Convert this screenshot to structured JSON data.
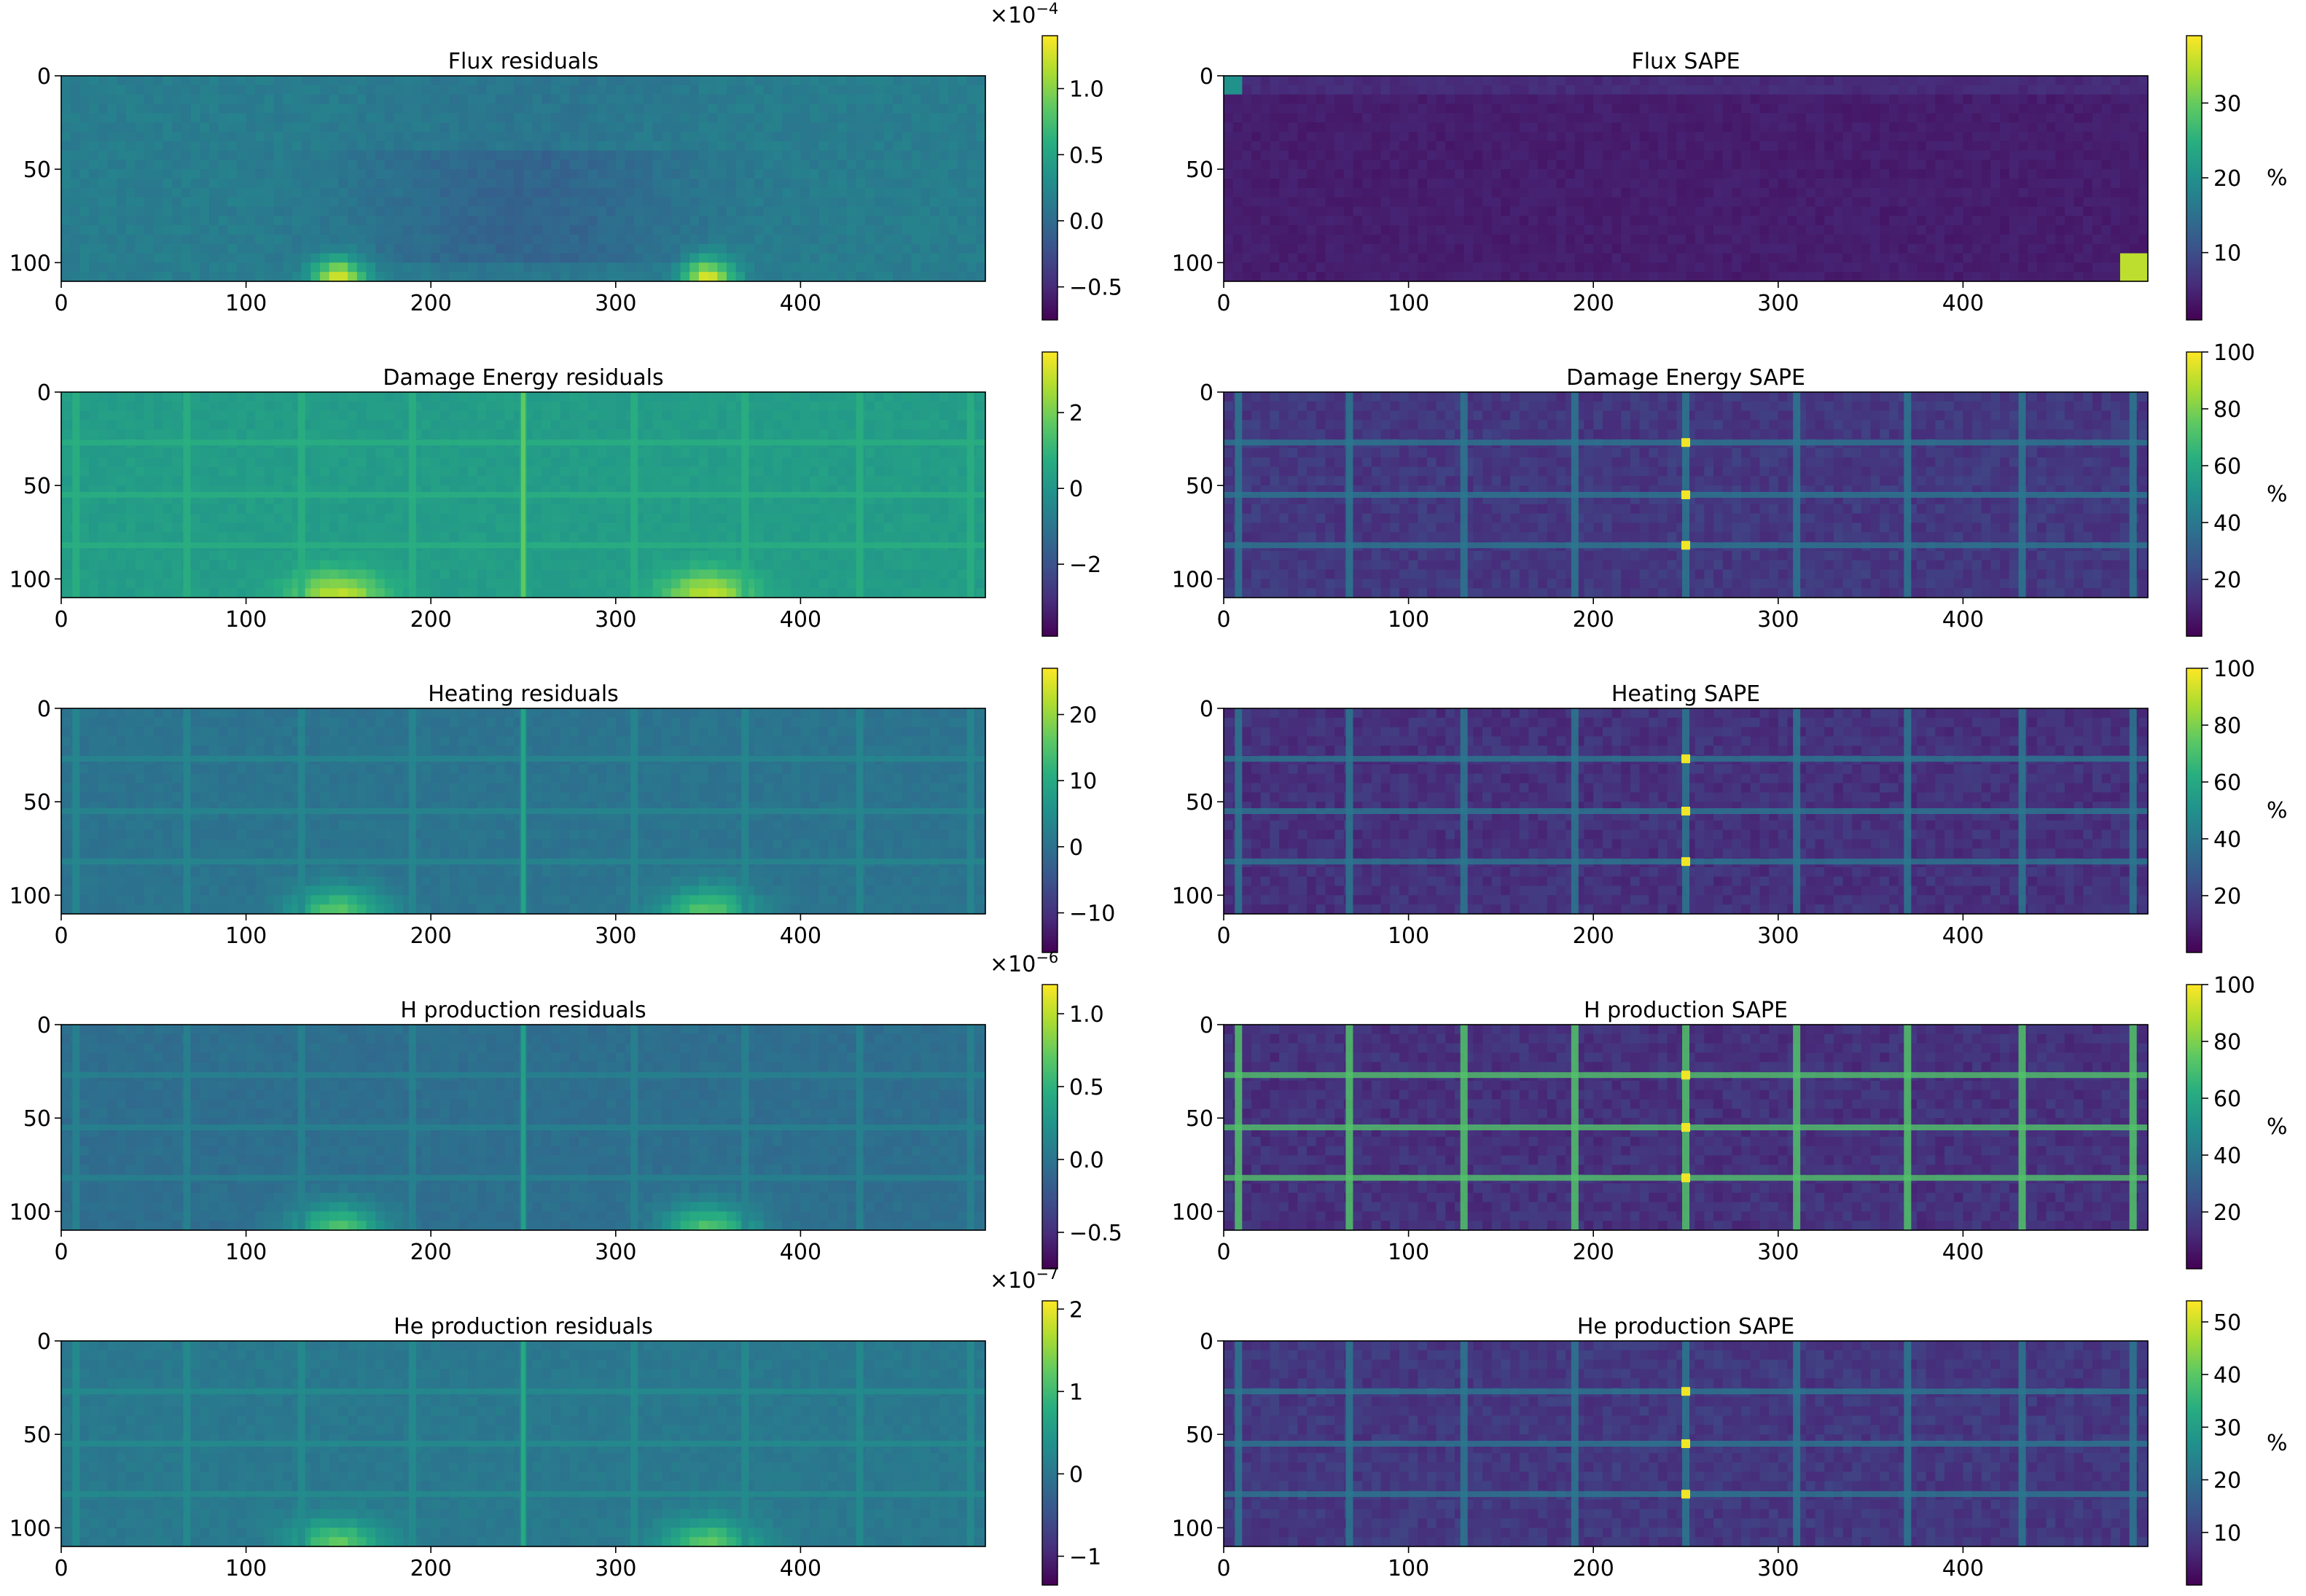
{
  "chart_data": [
    {
      "type": "heatmap",
      "title": "Flux residuals",
      "x_ticks": [
        0,
        100,
        200,
        300,
        400
      ],
      "y_ticks": [
        0,
        50,
        100
      ],
      "xlim": [
        0,
        500
      ],
      "ylim": [
        110,
        0
      ],
      "colorbar": {
        "ticks": [
          {
            "v": 1.0,
            "label": "1.0"
          },
          {
            "v": 0.5,
            "label": "0.5"
          },
          {
            "v": 0.0,
            "label": "0.0"
          },
          {
            "v": -0.5,
            "label": "−0.5"
          }
        ],
        "range": [
          -0.75,
          1.4
        ],
        "multiplier_base": "×10",
        "multiplier_exp": "−4",
        "label": ""
      },
      "colormap": "viridis",
      "pattern": "flux",
      "hotspots_x": [
        150,
        350
      ],
      "base_level": 0.42
    },
    {
      "type": "heatmap",
      "title": "Flux SAPE",
      "x_ticks": [
        0,
        100,
        200,
        300,
        400
      ],
      "y_ticks": [
        0,
        50,
        100
      ],
      "xlim": [
        0,
        500
      ],
      "ylim": [
        110,
        0
      ],
      "colorbar": {
        "ticks": [
          {
            "v": 30,
            "label": "30"
          },
          {
            "v": 20,
            "label": "20"
          },
          {
            "v": 10,
            "label": "10"
          }
        ],
        "range": [
          1,
          39
        ],
        "multiplier_base": "",
        "multiplier_exp": "",
        "label": "%"
      },
      "colormap": "viridis",
      "pattern": "flux-sape",
      "hotspots_x": [],
      "base_level": 0.08
    },
    {
      "type": "heatmap",
      "title": "Damage Energy residuals",
      "x_ticks": [
        0,
        100,
        200,
        300,
        400
      ],
      "y_ticks": [
        0,
        50,
        100
      ],
      "xlim": [
        0,
        500
      ],
      "ylim": [
        110,
        0
      ],
      "colorbar": {
        "ticks": [
          {
            "v": 2,
            "label": "2"
          },
          {
            "v": 0,
            "label": "0"
          },
          {
            "v": -2,
            "label": "−2"
          }
        ],
        "range": [
          -3.9,
          3.6
        ],
        "multiplier_base": "",
        "multiplier_exp": "",
        "label": ""
      },
      "colormap": "viridis",
      "pattern": "grid-res",
      "hotspots_x": [
        150,
        350
      ],
      "base_level": 0.55
    },
    {
      "type": "heatmap",
      "title": "Damage Energy SAPE",
      "x_ticks": [
        0,
        100,
        200,
        300,
        400
      ],
      "y_ticks": [
        0,
        50,
        100
      ],
      "xlim": [
        0,
        500
      ],
      "ylim": [
        110,
        0
      ],
      "colorbar": {
        "ticks": [
          {
            "v": 100,
            "label": "100"
          },
          {
            "v": 80,
            "label": "80"
          },
          {
            "v": 60,
            "label": "60"
          },
          {
            "v": 40,
            "label": "40"
          },
          {
            "v": 20,
            "label": "20"
          }
        ],
        "range": [
          0,
          100
        ],
        "multiplier_base": "",
        "multiplier_exp": "",
        "label": "%"
      },
      "colormap": "viridis",
      "pattern": "grid-sape",
      "hotspots_x": [],
      "base_level": 0.12
    },
    {
      "type": "heatmap",
      "title": "Heating residuals",
      "x_ticks": [
        0,
        100,
        200,
        300,
        400
      ],
      "y_ticks": [
        0,
        50,
        100
      ],
      "xlim": [
        0,
        500
      ],
      "ylim": [
        110,
        0
      ],
      "colorbar": {
        "ticks": [
          {
            "v": 20,
            "label": "20"
          },
          {
            "v": 10,
            "label": "10"
          },
          {
            "v": 0,
            "label": "0"
          },
          {
            "v": -10,
            "label": "−10"
          }
        ],
        "range": [
          -16,
          27
        ],
        "multiplier_base": "",
        "multiplier_exp": "",
        "label": ""
      },
      "colormap": "viridis",
      "pattern": "grid-res",
      "hotspots_x": [
        150,
        350
      ],
      "base_level": 0.38
    },
    {
      "type": "heatmap",
      "title": "Heating SAPE",
      "x_ticks": [
        0,
        100,
        200,
        300,
        400
      ],
      "y_ticks": [
        0,
        50,
        100
      ],
      "xlim": [
        0,
        500
      ],
      "ylim": [
        110,
        0
      ],
      "colorbar": {
        "ticks": [
          {
            "v": 100,
            "label": "100"
          },
          {
            "v": 80,
            "label": "80"
          },
          {
            "v": 60,
            "label": "60"
          },
          {
            "v": 40,
            "label": "40"
          },
          {
            "v": 20,
            "label": "20"
          }
        ],
        "range": [
          0,
          100
        ],
        "multiplier_base": "",
        "multiplier_exp": "",
        "label": "%"
      },
      "colormap": "viridis",
      "pattern": "grid-sape",
      "hotspots_x": [],
      "base_level": 0.1
    },
    {
      "type": "heatmap",
      "title": "H production residuals",
      "x_ticks": [
        0,
        100,
        200,
        300,
        400
      ],
      "y_ticks": [
        0,
        50,
        100
      ],
      "xlim": [
        0,
        500
      ],
      "ylim": [
        110,
        0
      ],
      "colorbar": {
        "ticks": [
          {
            "v": 1.0,
            "label": "1.0"
          },
          {
            "v": 0.5,
            "label": "0.5"
          },
          {
            "v": 0.0,
            "label": "0.0"
          },
          {
            "v": -0.5,
            "label": "−0.5"
          }
        ],
        "range": [
          -0.75,
          1.2
        ],
        "multiplier_base": "×10",
        "multiplier_exp": "−6",
        "label": ""
      },
      "colormap": "viridis",
      "pattern": "grid-res",
      "hotspots_x": [
        150,
        350
      ],
      "base_level": 0.36
    },
    {
      "type": "heatmap",
      "title": "H production SAPE",
      "x_ticks": [
        0,
        100,
        200,
        300,
        400
      ],
      "y_ticks": [
        0,
        50,
        100
      ],
      "xlim": [
        0,
        500
      ],
      "ylim": [
        110,
        0
      ],
      "colorbar": {
        "ticks": [
          {
            "v": 100,
            "label": "100"
          },
          {
            "v": 80,
            "label": "80"
          },
          {
            "v": 60,
            "label": "60"
          },
          {
            "v": 40,
            "label": "40"
          },
          {
            "v": 20,
            "label": "20"
          }
        ],
        "range": [
          0,
          100
        ],
        "multiplier_base": "",
        "multiplier_exp": "",
        "label": "%"
      },
      "colormap": "viridis",
      "pattern": "grid-sape-bright",
      "hotspots_x": [],
      "base_level": 0.1
    },
    {
      "type": "heatmap",
      "title": "He production residuals",
      "x_ticks": [
        0,
        100,
        200,
        300,
        400
      ],
      "y_ticks": [
        0,
        50,
        100
      ],
      "xlim": [
        0,
        500
      ],
      "ylim": [
        110,
        0
      ],
      "colorbar": {
        "ticks": [
          {
            "v": 2,
            "label": "2"
          },
          {
            "v": 1,
            "label": "1"
          },
          {
            "v": 0,
            "label": "0"
          },
          {
            "v": -1,
            "label": "−1"
          }
        ],
        "range": [
          -1.35,
          2.1
        ],
        "multiplier_base": "×10",
        "multiplier_exp": "−7",
        "label": ""
      },
      "colormap": "viridis",
      "pattern": "grid-res",
      "hotspots_x": [
        150,
        350
      ],
      "base_level": 0.4
    },
    {
      "type": "heatmap",
      "title": "He production SAPE",
      "x_ticks": [
        0,
        100,
        200,
        300,
        400
      ],
      "y_ticks": [
        0,
        50,
        100
      ],
      "xlim": [
        0,
        500
      ],
      "ylim": [
        110,
        0
      ],
      "colorbar": {
        "ticks": [
          {
            "v": 50,
            "label": "50"
          },
          {
            "v": 40,
            "label": "40"
          },
          {
            "v": 30,
            "label": "30"
          },
          {
            "v": 20,
            "label": "20"
          },
          {
            "v": 10,
            "label": "10"
          }
        ],
        "range": [
          0,
          54
        ],
        "multiplier_base": "",
        "multiplier_exp": "",
        "label": "%"
      },
      "colormap": "viridis",
      "pattern": "grid-sape",
      "hotspots_x": [],
      "base_level": 0.12
    }
  ]
}
